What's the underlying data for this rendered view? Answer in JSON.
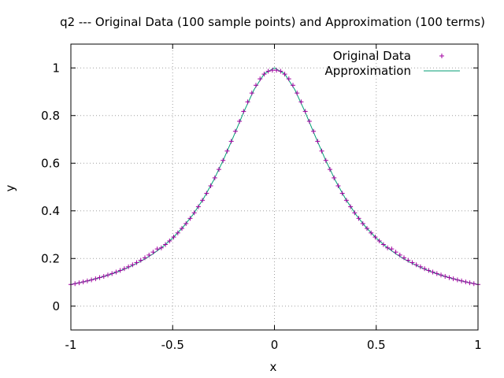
{
  "chart_data": {
    "type": "scatter",
    "title": "q2 --- Original Data (100 sample points) and Approximation (100 terms)",
    "xlabel": "x",
    "ylabel": "y",
    "xlim": [
      -1,
      1
    ],
    "ylim": [
      -0.1,
      1.1
    ],
    "xticks": [
      -1,
      -0.5,
      0,
      0.5,
      1
    ],
    "xtick_labels": [
      "-1",
      "-0.5",
      "0",
      "0.5",
      "1"
    ],
    "yticks": [
      0,
      0.2,
      0.4,
      0.6,
      0.8,
      1
    ],
    "ytick_labels": [
      "0",
      "0.2",
      "0.4",
      "0.6",
      "0.8",
      "1"
    ],
    "grid": true,
    "legend_position": "top-right",
    "series": [
      {
        "name": "Original Data",
        "style": "points",
        "marker": "plus",
        "color": "#a000a0",
        "x": [
          -1.0,
          -0.9798,
          -0.9596,
          -0.9394,
          -0.9192,
          -0.899,
          -0.8788,
          -0.8586,
          -0.8384,
          -0.8182,
          -0.798,
          -0.7778,
          -0.7576,
          -0.7374,
          -0.7172,
          -0.697,
          -0.6768,
          -0.6566,
          -0.6364,
          -0.6162,
          -0.596,
          -0.5758,
          -0.5556,
          -0.5354,
          -0.5152,
          -0.495,
          -0.4747,
          -0.4545,
          -0.4343,
          -0.4141,
          -0.3939,
          -0.3737,
          -0.3535,
          -0.3333,
          -0.3131,
          -0.2929,
          -0.2727,
          -0.2525,
          -0.2323,
          -0.2121,
          -0.1919,
          -0.1717,
          -0.1515,
          -0.1313,
          -0.1111,
          -0.0909,
          -0.0707,
          -0.0505,
          -0.0303,
          -0.0101,
          0.0101,
          0.0303,
          0.0505,
          0.0707,
          0.0909,
          0.1111,
          0.1313,
          0.1515,
          0.1717,
          0.1919,
          0.2121,
          0.2323,
          0.2525,
          0.2727,
          0.2929,
          0.3131,
          0.3333,
          0.3535,
          0.3737,
          0.3939,
          0.4141,
          0.4343,
          0.4545,
          0.4747,
          0.495,
          0.5152,
          0.5354,
          0.5556,
          0.5758,
          0.596,
          0.6162,
          0.6364,
          0.6566,
          0.6768,
          0.697,
          0.7172,
          0.7374,
          0.7576,
          0.7778,
          0.798,
          0.8182,
          0.8384,
          0.8586,
          0.8788,
          0.899,
          0.9192,
          0.9394,
          0.9596,
          0.9798,
          1.0
        ],
        "y": [
          0.0909,
          0.0943,
          0.0979,
          0.1018,
          0.1059,
          0.1102,
          0.1148,
          0.1198,
          0.125,
          0.1307,
          0.1367,
          0.1431,
          0.1499,
          0.1573,
          0.1652,
          0.1736,
          0.1827,
          0.1925,
          0.2031,
          0.2145,
          0.2268,
          0.2401,
          0.2447,
          0.2587,
          0.2737,
          0.2899,
          0.3074,
          0.3263,
          0.3466,
          0.3684,
          0.3919,
          0.4172,
          0.4444,
          0.4737,
          0.505,
          0.5384,
          0.574,
          0.6117,
          0.6511,
          0.692,
          0.7339,
          0.776,
          0.8176,
          0.8575,
          0.8945,
          0.9272,
          0.9541,
          0.974,
          0.9862,
          0.9903,
          0.9903,
          0.9862,
          0.974,
          0.9541,
          0.9272,
          0.8945,
          0.8575,
          0.8176,
          0.776,
          0.7339,
          0.692,
          0.6511,
          0.6117,
          0.574,
          0.5384,
          0.505,
          0.4737,
          0.4444,
          0.4172,
          0.3919,
          0.3684,
          0.3466,
          0.3263,
          0.3074,
          0.2899,
          0.2737,
          0.2587,
          0.2447,
          0.2401,
          0.2268,
          0.2145,
          0.2031,
          0.1925,
          0.1827,
          0.1736,
          0.1652,
          0.1573,
          0.1499,
          0.1431,
          0.1367,
          0.1307,
          0.125,
          0.1198,
          0.1148,
          0.1102,
          0.1059,
          0.1018,
          0.0979,
          0.0943,
          0.0909
        ]
      },
      {
        "name": "Approximation",
        "style": "line",
        "color": "#009e73",
        "x": [
          -1.0,
          -0.95,
          -0.9,
          -0.85,
          -0.8,
          -0.75,
          -0.7,
          -0.65,
          -0.6,
          -0.55,
          -0.5,
          -0.45,
          -0.4,
          -0.35,
          -0.3,
          -0.25,
          -0.2,
          -0.15,
          -0.1,
          -0.05,
          0.0,
          0.05,
          0.1,
          0.15,
          0.2,
          0.25,
          0.3,
          0.35,
          0.4,
          0.45,
          0.5,
          0.55,
          0.6,
          0.65,
          0.7,
          0.75,
          0.8,
          0.85,
          0.9,
          0.95,
          1.0
        ],
        "y": [
          0.0909,
          0.0997,
          0.1099,
          0.1216,
          0.1351,
          0.1509,
          0.1695,
          0.1914,
          0.2174,
          0.2485,
          0.2857,
          0.3306,
          0.3846,
          0.4494,
          0.5263,
          0.6154,
          0.7143,
          0.8163,
          0.9091,
          0.9756,
          1.0,
          0.9756,
          0.9091,
          0.8163,
          0.7143,
          0.6154,
          0.5263,
          0.4494,
          0.3846,
          0.3306,
          0.2857,
          0.2485,
          0.2174,
          0.1914,
          0.1695,
          0.1509,
          0.1351,
          0.1216,
          0.1099,
          0.0997,
          0.0909
        ]
      }
    ]
  }
}
